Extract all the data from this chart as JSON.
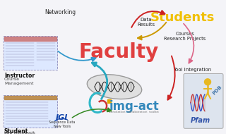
{
  "bg_color": "#eeeeee",
  "faculty_text": "Faculty",
  "faculty_color": "#e04040",
  "students_text": "Students",
  "students_color": "#f0c000",
  "imgact_text": "img-act",
  "imgact_color": "#3388bb",
  "imgact_sub": "annotation  collaboration  toolkit",
  "networking_text": "Networking",
  "data_results_text": "Data\nResults",
  "courses_text": "Courses\nResearch Projects",
  "tool_integration_text": "Tool Integration",
  "instructor_text": "Instructor",
  "instructor_sub": "Course\nManagement",
  "student_text": "Student",
  "student_sub": "Lab Notebook",
  "jgi_text": "JGI",
  "jgi_sub": "Sequence Data\nNew Tools",
  "pfam_text": "Pfam",
  "pdb_text": "PDB"
}
